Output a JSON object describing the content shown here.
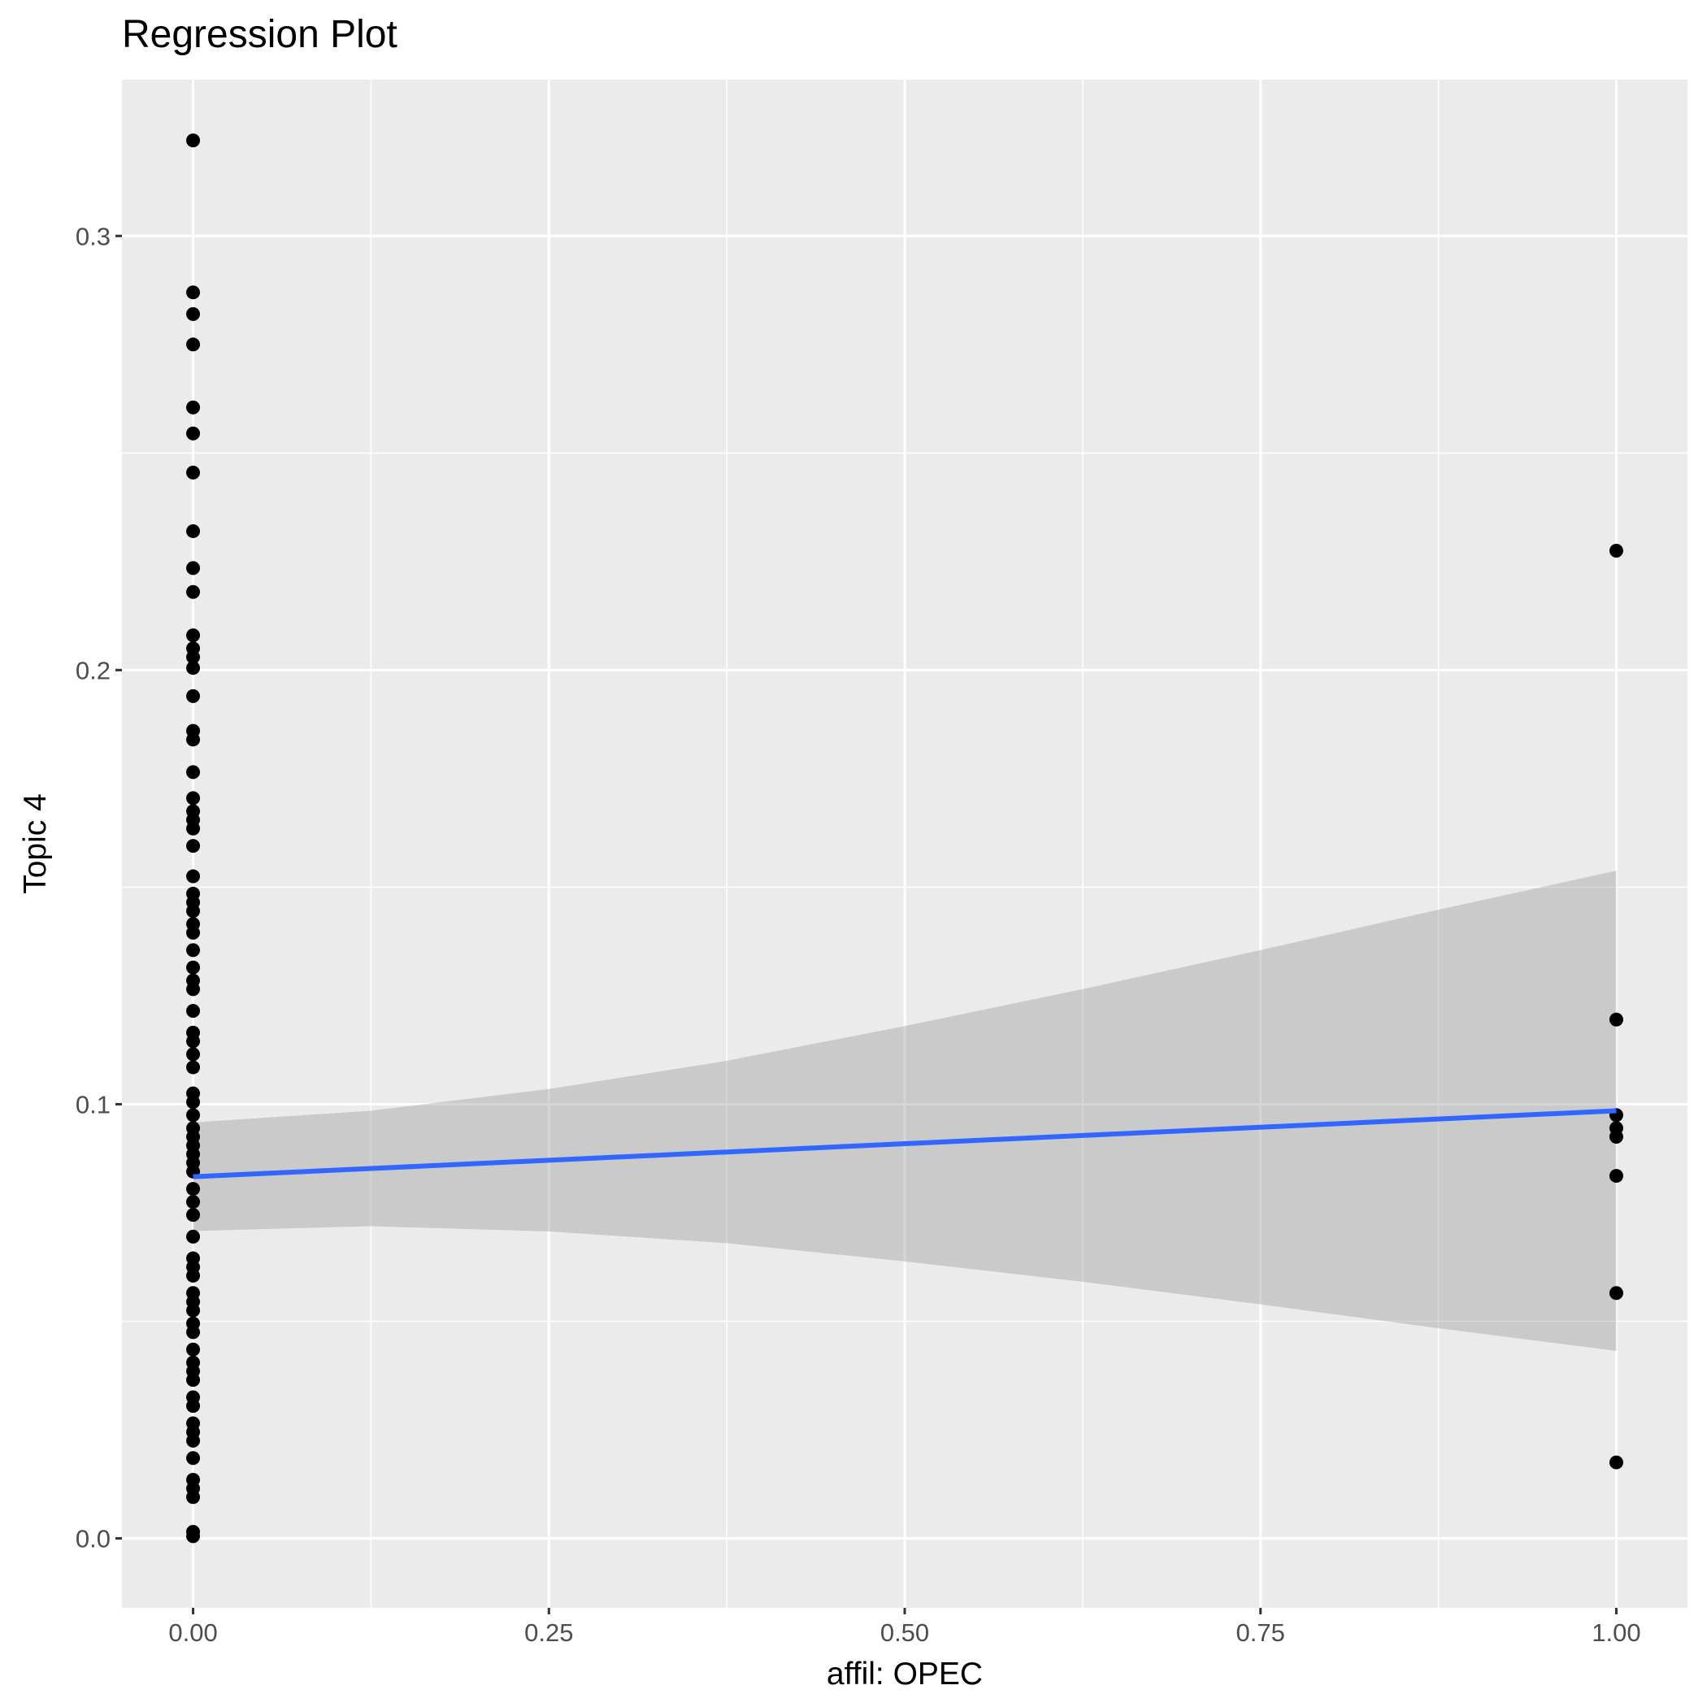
{
  "chart_data": {
    "type": "scatter",
    "title": "Regression Plot",
    "xlabel": "affil: OPEC",
    "ylabel": "Topic 4",
    "xlim": [
      -0.05,
      1.05
    ],
    "ylim": [
      -0.016,
      0.336
    ],
    "x_ticks": [
      0.0,
      0.25,
      0.5,
      0.75,
      1.0
    ],
    "x_tick_labels": [
      "0.00",
      "0.25",
      "0.50",
      "0.75",
      "1.00"
    ],
    "y_ticks": [
      0.0,
      0.1,
      0.2,
      0.3
    ],
    "y_tick_labels": [
      "0.0",
      "0.1",
      "0.2",
      "0.3"
    ],
    "grid": true,
    "series": [
      {
        "points": [
          {
            "x": 0,
            "y": 0.322
          },
          {
            "x": 0,
            "y": 0.287
          },
          {
            "x": 0,
            "y": 0.282
          },
          {
            "x": 0,
            "y": 0.275
          },
          {
            "x": 0,
            "y": 0.2605
          },
          {
            "x": 0,
            "y": 0.2545
          },
          {
            "x": 0,
            "y": 0.2455
          },
          {
            "x": 0,
            "y": 0.232
          },
          {
            "x": 0,
            "y": 0.2235
          },
          {
            "x": 0,
            "y": 0.218
          },
          {
            "x": 0,
            "y": 0.208
          },
          {
            "x": 0,
            "y": 0.205
          },
          {
            "x": 0,
            "y": 0.203
          },
          {
            "x": 0,
            "y": 0.2005
          },
          {
            "x": 0,
            "y": 0.194
          },
          {
            "x": 0,
            "y": 0.186
          },
          {
            "x": 0,
            "y": 0.184
          },
          {
            "x": 0,
            "y": 0.1765
          },
          {
            "x": 0,
            "y": 0.1705
          },
          {
            "x": 0,
            "y": 0.1675
          },
          {
            "x": 0,
            "y": 0.1655
          },
          {
            "x": 0,
            "y": 0.1635
          },
          {
            "x": 0,
            "y": 0.1595
          },
          {
            "x": 0,
            "y": 0.1525
          },
          {
            "x": 0,
            "y": 0.1485
          },
          {
            "x": 0,
            "y": 0.1465
          },
          {
            "x": 0,
            "y": 0.1445
          },
          {
            "x": 0,
            "y": 0.1415
          },
          {
            "x": 0,
            "y": 0.1395
          },
          {
            "x": 0,
            "y": 0.1355
          },
          {
            "x": 0,
            "y": 0.1315
          },
          {
            "x": 0,
            "y": 0.1285
          },
          {
            "x": 0,
            "y": 0.1265
          },
          {
            "x": 0,
            "y": 0.1215
          },
          {
            "x": 0,
            "y": 0.1165
          },
          {
            "x": 0,
            "y": 0.1145
          },
          {
            "x": 0,
            "y": 0.1115
          },
          {
            "x": 0,
            "y": 0.1085
          },
          {
            "x": 0,
            "y": 0.1025
          },
          {
            "x": 0,
            "y": 0.1005
          },
          {
            "x": 0,
            "y": 0.0975
          },
          {
            "x": 0,
            "y": 0.0945
          },
          {
            "x": 0,
            "y": 0.0925
          },
          {
            "x": 0,
            "y": 0.0905
          },
          {
            "x": 0,
            "y": 0.0885
          },
          {
            "x": 0,
            "y": 0.0865
          },
          {
            "x": 0,
            "y": 0.0845
          },
          {
            "x": 0,
            "y": 0.0805
          },
          {
            "x": 0,
            "y": 0.0775
          },
          {
            "x": 0,
            "y": 0.0745
          },
          {
            "x": 0,
            "y": 0.0695
          },
          {
            "x": 0,
            "y": 0.0645
          },
          {
            "x": 0,
            "y": 0.0625
          },
          {
            "x": 0,
            "y": 0.0605
          },
          {
            "x": 0,
            "y": 0.0565
          },
          {
            "x": 0,
            "y": 0.0545
          },
          {
            "x": 0,
            "y": 0.0525
          },
          {
            "x": 0,
            "y": 0.0495
          },
          {
            "x": 0,
            "y": 0.0475
          },
          {
            "x": 0,
            "y": 0.0435
          },
          {
            "x": 0,
            "y": 0.0405
          },
          {
            "x": 0,
            "y": 0.0385
          },
          {
            "x": 0,
            "y": 0.0365
          },
          {
            "x": 0,
            "y": 0.0325
          },
          {
            "x": 0,
            "y": 0.0305
          },
          {
            "x": 0,
            "y": 0.0265
          },
          {
            "x": 0,
            "y": 0.0245
          },
          {
            "x": 0,
            "y": 0.0225
          },
          {
            "x": 0,
            "y": 0.0185
          },
          {
            "x": 0,
            "y": 0.0135
          },
          {
            "x": 0,
            "y": 0.0115
          },
          {
            "x": 0,
            "y": 0.0095
          },
          {
            "x": 0,
            "y": 0.0015
          },
          {
            "x": 0,
            "y": 0.0005
          },
          {
            "x": 1,
            "y": 0.2275
          },
          {
            "x": 1,
            "y": 0.1195
          },
          {
            "x": 1,
            "y": 0.0975
          },
          {
            "x": 1,
            "y": 0.0945
          },
          {
            "x": 1,
            "y": 0.0925
          },
          {
            "x": 1,
            "y": 0.0835
          },
          {
            "x": 1,
            "y": 0.0565
          },
          {
            "x": 1,
            "y": 0.0175
          }
        ]
      }
    ],
    "regression": {
      "x": [
        0.0,
        0.125,
        0.25,
        0.375,
        0.5,
        0.625,
        0.75,
        0.875,
        1.0
      ],
      "fit": [
        0.0833,
        0.0852,
        0.0871,
        0.089,
        0.0909,
        0.0928,
        0.0947,
        0.0966,
        0.0985
      ],
      "ci_upper": [
        0.0958,
        0.0985,
        0.1035,
        0.11,
        0.118,
        0.1265,
        0.1355,
        0.1448,
        0.1538
      ],
      "ci_lower": [
        0.0708,
        0.0719,
        0.0707,
        0.068,
        0.0638,
        0.0591,
        0.0539,
        0.0484,
        0.0432
      ]
    },
    "colors": {
      "panel": "#ebebeb",
      "grid": "#ffffff",
      "points": "#000000",
      "line": "#3366ff",
      "ribbon": "#999999"
    }
  }
}
